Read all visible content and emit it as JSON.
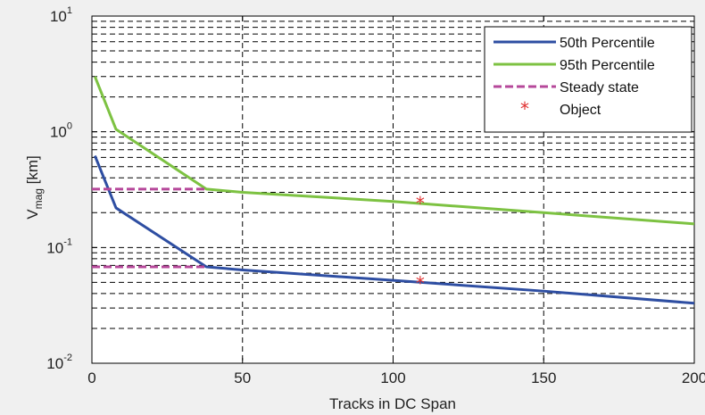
{
  "chart_data": {
    "type": "line",
    "title": "",
    "xlabel": "Tracks in DC Span",
    "ylabel": {
      "main": "V",
      "sub": "mag",
      "unit": " [km]"
    },
    "xlim": [
      0,
      200
    ],
    "ylim": [
      0.01,
      10
    ],
    "y_scale": "log",
    "grid": true,
    "legend_position": "top-right",
    "x_ticks": [
      "0",
      "50",
      "100",
      "150",
      "200"
    ],
    "x_tick_values": [
      0,
      50,
      100,
      150,
      200
    ],
    "y_ticks": [
      {
        "value": 0.01,
        "base": "10",
        "exp": "-2"
      },
      {
        "value": 0.1,
        "base": "10",
        "exp": "-1"
      },
      {
        "value": 1,
        "base": "10",
        "exp": "0"
      },
      {
        "value": 10,
        "base": "10",
        "exp": "1"
      }
    ],
    "series": [
      {
        "name": "50th Percentile",
        "color": "#2e4ea2",
        "style": "solid",
        "x": [
          1,
          8,
          38,
          50,
          100,
          150,
          200
        ],
        "y": [
          0.62,
          0.22,
          0.068,
          0.064,
          0.052,
          0.042,
          0.033
        ]
      },
      {
        "name": "95th Percentile",
        "color": "#7dc242",
        "style": "solid",
        "x": [
          1,
          8,
          38,
          50,
          100,
          150,
          200
        ],
        "y": [
          3.0,
          1.05,
          0.32,
          0.3,
          0.25,
          0.2,
          0.16
        ]
      },
      {
        "name": "Steady state",
        "color": "#b6489a",
        "style": "dashed",
        "segments": [
          {
            "x": [
              0,
              38
            ],
            "y": [
              0.32,
              0.32
            ]
          },
          {
            "x": [
              0,
              38
            ],
            "y": [
              0.068,
              0.068
            ]
          }
        ]
      },
      {
        "name": "Object",
        "color": "#e03030",
        "style": "marker",
        "marker": "*",
        "x": [
          109,
          109
        ],
        "y": [
          0.24,
          0.049
        ]
      }
    ]
  }
}
